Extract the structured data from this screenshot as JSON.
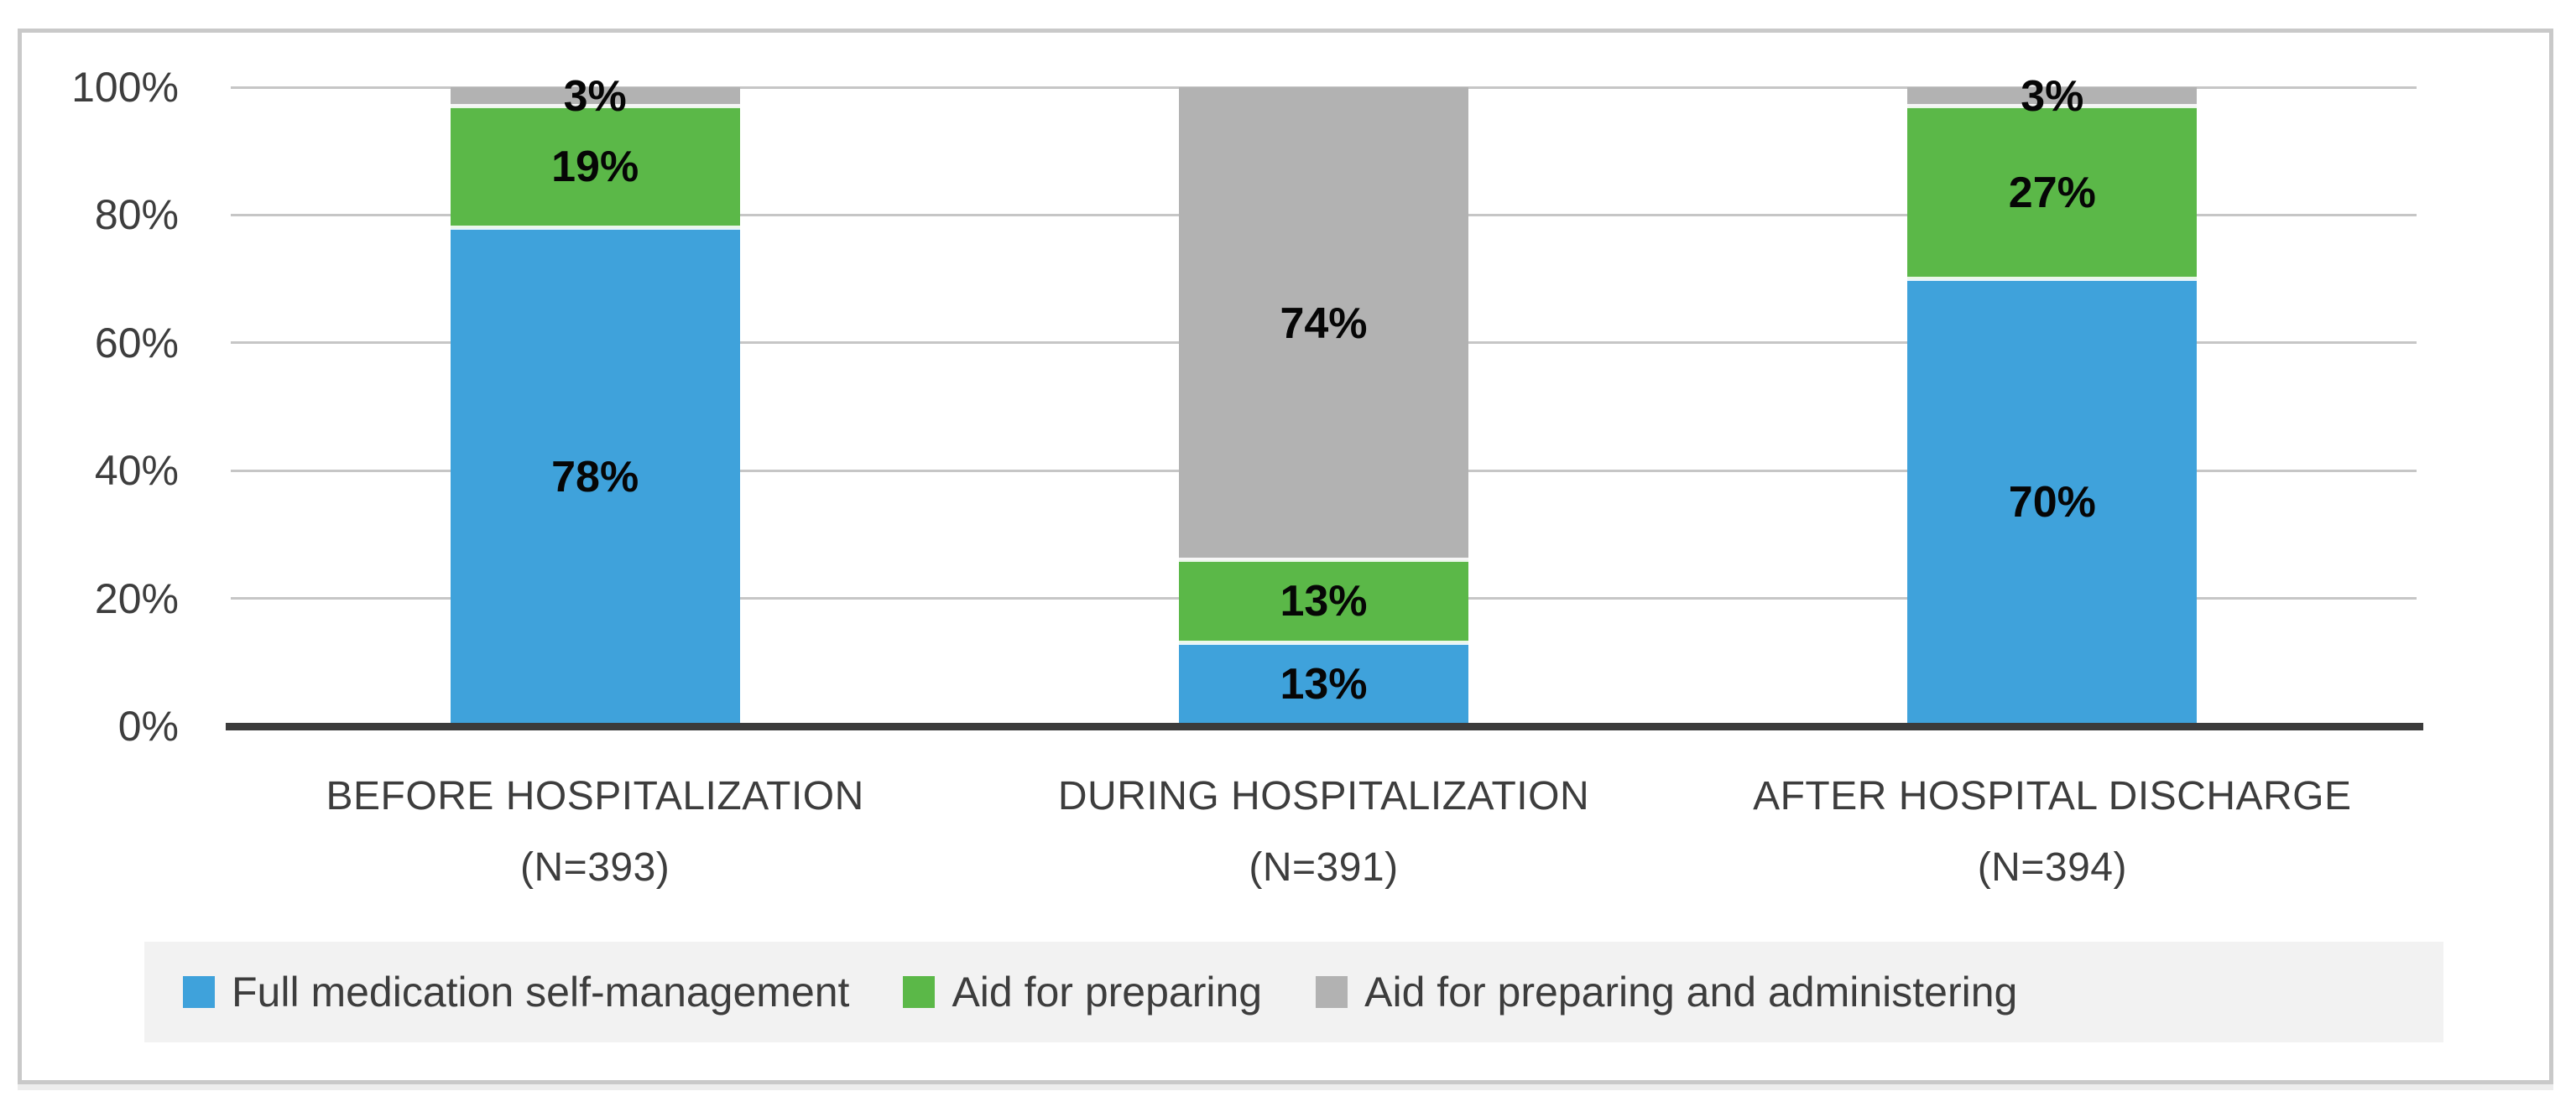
{
  "page": {
    "background": "#FFFFFF"
  },
  "frame": {
    "border_color": "#C9C9C9"
  },
  "chart_data": {
    "type": "bar",
    "stacked": true,
    "percent_stacked": true,
    "title": "",
    "categories": [
      "BEFORE HOSPITALIZATION",
      "DURING HOSPITALIZATION",
      "AFTER HOSPITAL DISCHARGE"
    ],
    "category_sublabels": [
      "(N=393)",
      "(N=391)",
      "(N=394)"
    ],
    "series": [
      {
        "name": "Full medication self-management",
        "color": "#3FA2DB",
        "values": [
          78,
          13,
          70
        ]
      },
      {
        "name": "Aid for preparing",
        "color": "#5BB848",
        "values": [
          19,
          13,
          27
        ]
      },
      {
        "name": "Aid for preparing and administering",
        "color": "#B2B2B2",
        "values": [
          3,
          74,
          3
        ]
      }
    ],
    "value_suffix": "%",
    "data_label_color": "#060606",
    "y_axis": {
      "min": 0,
      "max": 100,
      "step": 20,
      "tick_labels": [
        "0%",
        "20%",
        "40%",
        "60%",
        "80%",
        "100%"
      ],
      "grid": true,
      "gridline_color": "#C6C6C6",
      "axis_line_color": "#3B3B3B",
      "label_color": "#3D3D3D"
    },
    "legend": {
      "position": "bottom",
      "background": "#F2F2F2",
      "text_color": "#3D3D3D"
    }
  }
}
